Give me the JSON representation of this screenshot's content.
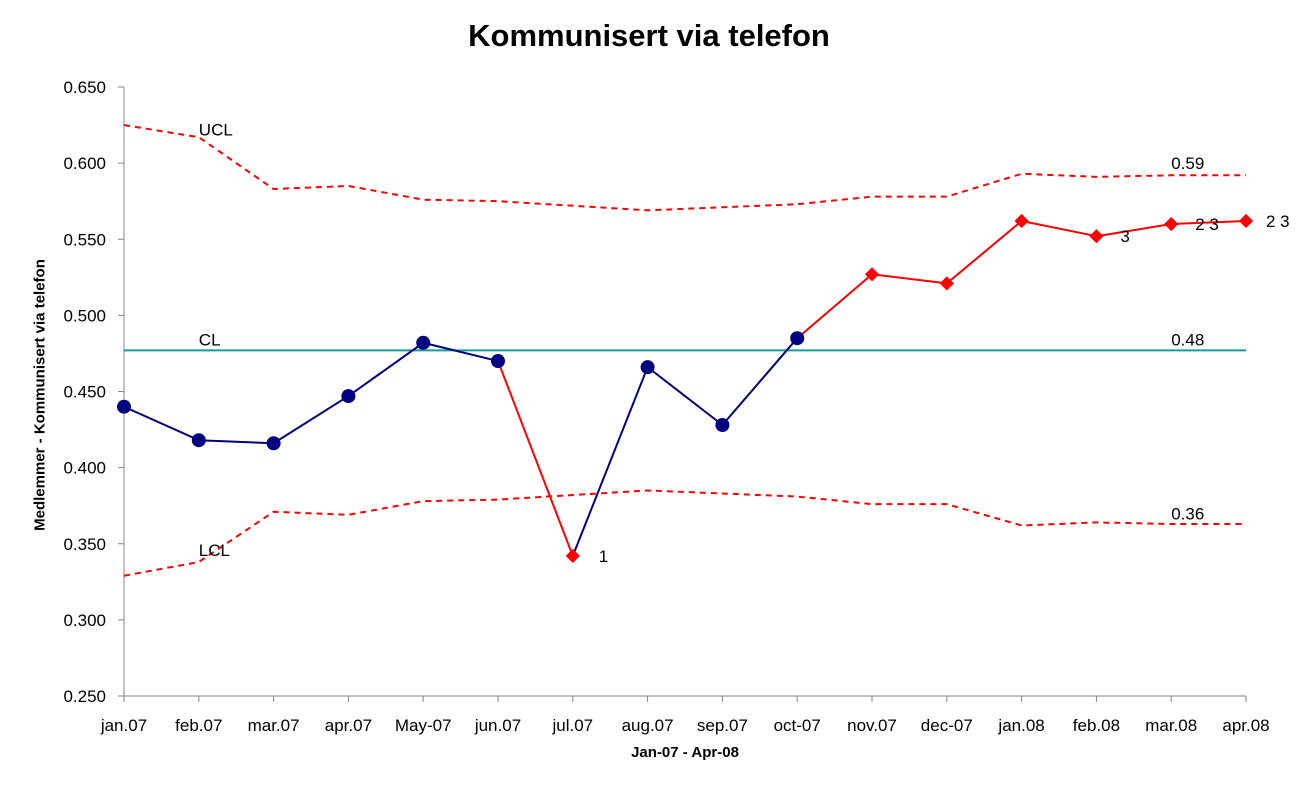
{
  "chart_data": {
    "type": "line",
    "title": "Kommunisert via telefon",
    "xlabel": "Jan-07 - Apr-08",
    "ylabel": "Medlemmer - Kommunisert via telefon",
    "ylim": [
      0.25,
      0.65
    ],
    "y_ticks": [
      "0.250",
      "0.300",
      "0.350",
      "0.400",
      "0.450",
      "0.500",
      "0.550",
      "0.600",
      "0.650"
    ],
    "categories": [
      "jan.07",
      "feb.07",
      "mar.07",
      "apr.07",
      "May-07",
      "jun.07",
      "jul.07",
      "aug.07",
      "sep.07",
      "oct-07",
      "nov.07",
      "dec-07",
      "jan.08",
      "feb.08",
      "mar.08",
      "apr.08"
    ],
    "grid": false,
    "series": [
      {
        "name": "",
        "color": "#000080",
        "signal_color": "#ff0000",
        "values": [
          0.44,
          0.418,
          0.416,
          0.447,
          0.482,
          0.47,
          0.342,
          0.466,
          0.428,
          0.485,
          0.527,
          0.521,
          0.562,
          0.552,
          0.56,
          0.562
        ],
        "signal_flags": [
          false,
          false,
          false,
          false,
          false,
          false,
          true,
          false,
          false,
          false,
          true,
          true,
          true,
          true,
          true,
          true
        ]
      },
      {
        "name": "UCL",
        "color": "#ff0000",
        "style": "dashed",
        "values": [
          0.625,
          0.617,
          0.583,
          0.585,
          0.576,
          0.575,
          0.572,
          0.569,
          0.571,
          0.573,
          0.578,
          0.578,
          0.593,
          0.591,
          0.592,
          0.592
        ]
      },
      {
        "name": "CL",
        "color": "#1a9a9a",
        "values": [
          0.477,
          0.477,
          0.477,
          0.477,
          0.477,
          0.477,
          0.477,
          0.477,
          0.477,
          0.477,
          0.477,
          0.477,
          0.477,
          0.477,
          0.477,
          0.477
        ]
      },
      {
        "name": "LCL",
        "color": "#ff0000",
        "style": "dashed",
        "values": [
          0.329,
          0.338,
          0.371,
          0.369,
          0.378,
          0.379,
          0.382,
          0.385,
          0.383,
          0.381,
          0.376,
          0.376,
          0.362,
          0.364,
          0.363,
          0.363
        ]
      }
    ],
    "annotations": [
      {
        "text": "UCL",
        "x_index": 1,
        "y": 0.622
      },
      {
        "text": "CL",
        "x_index": 1,
        "y": 0.484
      },
      {
        "text": "LCL",
        "x_index": 1,
        "y": 0.346
      },
      {
        "text": "0.59",
        "x_index": 14,
        "y": 0.6
      },
      {
        "text": "0.48",
        "x_index": 14,
        "y": 0.484
      },
      {
        "text": "0.36",
        "x_index": 14,
        "y": 0.37
      },
      {
        "text": "1",
        "x_index": 6,
        "y": 0.342,
        "dx": 26
      },
      {
        "text": "3",
        "x_index": 13,
        "y": 0.552,
        "dx": 24
      },
      {
        "text": "2 3",
        "x_index": 14,
        "y": 0.56,
        "dx": 24
      },
      {
        "text": "2 3",
        "x_index": 15,
        "y": 0.562,
        "dx": 20
      }
    ]
  }
}
